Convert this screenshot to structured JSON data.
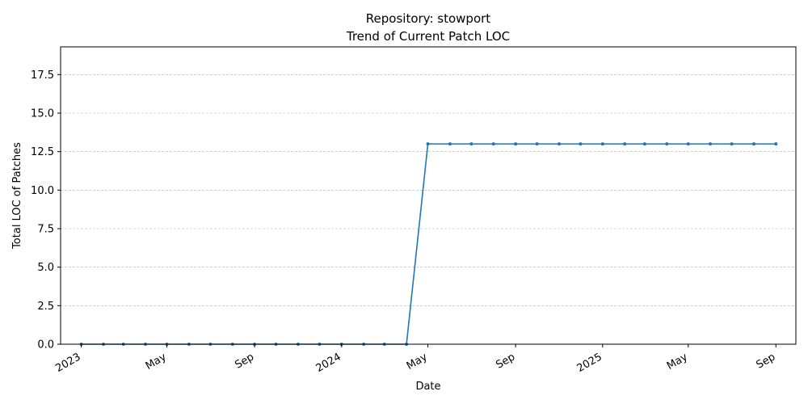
{
  "chart_data": {
    "type": "line",
    "title": "Repository: stowport",
    "subtitle": "Trend of Current Patch LOC",
    "xlabel": "Date",
    "ylabel": "Total LOC of Patches",
    "ylim": [
      0,
      19.3
    ],
    "xlim": [
      "2022-12-03",
      "2025-09-29"
    ],
    "grid": "horizontal-dashed",
    "yticks": [
      0.0,
      2.5,
      5.0,
      7.5,
      10.0,
      12.5,
      15.0,
      17.5
    ],
    "ytick_labels": [
      "0.0",
      "2.5",
      "5.0",
      "7.5",
      "10.0",
      "12.5",
      "15.0",
      "17.5"
    ],
    "xticks": [
      "2023-01-01",
      "2023-05-01",
      "2023-09-01",
      "2024-01-01",
      "2024-05-01",
      "2024-09-01",
      "2025-01-01",
      "2025-05-01",
      "2025-09-01"
    ],
    "xtick_labels": [
      "2023",
      "May",
      "Sep",
      "2024",
      "May",
      "Sep",
      "2025",
      "May",
      "Sep"
    ],
    "series": [
      {
        "color": "#1f77b4",
        "x": [
          "2023-01-01",
          "2023-02-01",
          "2023-03-01",
          "2023-04-01",
          "2023-05-01",
          "2023-06-01",
          "2023-07-01",
          "2023-08-01",
          "2023-09-01",
          "2023-10-01",
          "2023-11-01",
          "2023-12-01",
          "2024-01-01",
          "2024-02-01",
          "2024-03-01",
          "2024-04-01",
          "2024-05-01",
          "2024-06-01",
          "2024-07-01",
          "2024-08-01",
          "2024-09-01",
          "2024-10-01",
          "2024-11-01",
          "2024-12-01",
          "2025-01-01",
          "2025-02-01",
          "2025-03-01",
          "2025-04-01",
          "2025-05-01",
          "2025-06-01",
          "2025-07-01",
          "2025-08-01",
          "2025-09-01"
        ],
        "values": [
          0,
          0,
          0,
          0,
          0,
          0,
          0,
          0,
          0,
          0,
          0,
          0,
          0,
          0,
          0,
          0,
          13,
          13,
          13,
          13,
          13,
          13,
          13,
          13,
          13,
          13,
          13,
          13,
          13,
          13,
          13,
          13,
          13
        ]
      }
    ]
  }
}
